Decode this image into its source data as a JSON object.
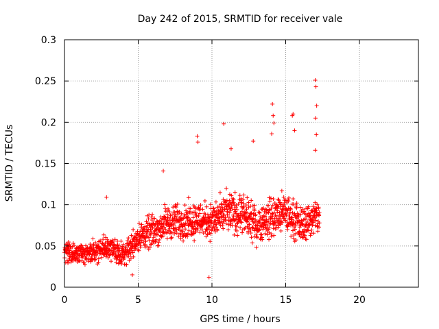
{
  "chart_data": {
    "type": "scatter",
    "title": "Day 242 of 2015, SRMTID for receiver vale",
    "xlabel": "GPS time / hours",
    "ylabel": "SRMTID / TECUs",
    "xlim": [
      0,
      24
    ],
    "ylim": [
      0,
      0.3
    ],
    "xticks": [
      "0",
      "5",
      "10",
      "15",
      "20"
    ],
    "yticks": [
      "0",
      "0.05",
      "0.1",
      "0.15",
      "0.2",
      "0.25",
      "0.3"
    ],
    "grid": true,
    "marker": "+",
    "color": "#ff0000",
    "data_extent_hours": [
      0,
      17.3
    ],
    "trend": [
      {
        "x": 0.0,
        "mean": 0.042,
        "spread": 0.018
      },
      {
        "x": 1.0,
        "mean": 0.04,
        "spread": 0.018
      },
      {
        "x": 2.0,
        "mean": 0.042,
        "spread": 0.02
      },
      {
        "x": 3.0,
        "mean": 0.048,
        "spread": 0.022
      },
      {
        "x": 4.0,
        "mean": 0.04,
        "spread": 0.018
      },
      {
        "x": 5.0,
        "mean": 0.06,
        "spread": 0.025
      },
      {
        "x": 6.0,
        "mean": 0.068,
        "spread": 0.028
      },
      {
        "x": 7.0,
        "mean": 0.078,
        "spread": 0.03
      },
      {
        "x": 8.0,
        "mean": 0.08,
        "spread": 0.03
      },
      {
        "x": 9.0,
        "mean": 0.082,
        "spread": 0.032
      },
      {
        "x": 10.0,
        "mean": 0.08,
        "spread": 0.03
      },
      {
        "x": 11.0,
        "mean": 0.09,
        "spread": 0.035
      },
      {
        "x": 12.0,
        "mean": 0.088,
        "spread": 0.035
      },
      {
        "x": 13.0,
        "mean": 0.075,
        "spread": 0.03
      },
      {
        "x": 14.0,
        "mean": 0.085,
        "spread": 0.035
      },
      {
        "x": 15.0,
        "mean": 0.09,
        "spread": 0.035
      },
      {
        "x": 16.0,
        "mean": 0.075,
        "spread": 0.03
      },
      {
        "x": 17.0,
        "mean": 0.085,
        "spread": 0.03
      }
    ],
    "spikes": [
      {
        "x": 2.85,
        "y": 0.109
      },
      {
        "x": 6.7,
        "y": 0.141
      },
      {
        "x": 9.0,
        "y": 0.183
      },
      {
        "x": 9.05,
        "y": 0.176
      },
      {
        "x": 10.8,
        "y": 0.198
      },
      {
        "x": 11.3,
        "y": 0.168
      },
      {
        "x": 12.8,
        "y": 0.177
      },
      {
        "x": 14.1,
        "y": 0.222
      },
      {
        "x": 14.15,
        "y": 0.208
      },
      {
        "x": 14.2,
        "y": 0.199
      },
      {
        "x": 14.05,
        "y": 0.186
      },
      {
        "x": 15.5,
        "y": 0.21
      },
      {
        "x": 15.45,
        "y": 0.208
      },
      {
        "x": 15.6,
        "y": 0.19
      },
      {
        "x": 17.0,
        "y": 0.251
      },
      {
        "x": 17.05,
        "y": 0.243
      },
      {
        "x": 17.1,
        "y": 0.22
      },
      {
        "x": 17.02,
        "y": 0.205
      },
      {
        "x": 17.08,
        "y": 0.185
      },
      {
        "x": 17.0,
        "y": 0.166
      },
      {
        "x": 9.8,
        "y": 0.012
      },
      {
        "x": 4.6,
        "y": 0.015
      }
    ]
  }
}
